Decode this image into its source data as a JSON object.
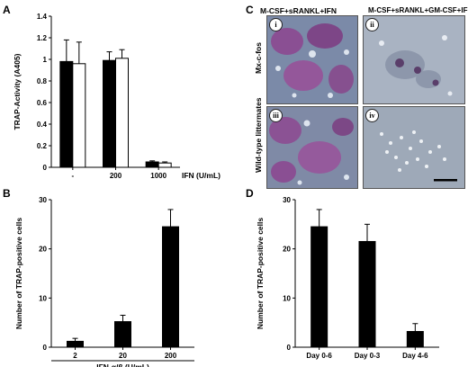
{
  "panels": {
    "A": {
      "label": "A",
      "chart_data": {
        "type": "bar",
        "ylabel": "TRAP-Activity (A405)",
        "xlabel": "IFN (U/mL)",
        "categories": [
          "-",
          "200",
          "1000"
        ],
        "ylim": [
          0,
          1.4
        ],
        "yticks": [
          "0",
          "0.2",
          "0.4",
          "0.6",
          "0.8",
          "1",
          "1.2",
          "1.4"
        ],
        "series": [
          {
            "values": [
              0.98,
              0.99,
              0.05
            ],
            "errors": [
              0.2,
              0.08,
              0.01
            ],
            "color": "#000000"
          },
          {
            "values": [
              0.96,
              1.01,
              0.04
            ],
            "errors": [
              0.2,
              0.08,
              0.01
            ],
            "color": "#ffffff"
          }
        ]
      }
    },
    "B": {
      "label": "B",
      "chart_data": {
        "type": "bar",
        "ylabel": "Number of TRAP-positive cells",
        "xlabel": "IFN-α/β (U/mL)",
        "categories": [
          "2",
          "20",
          "200"
        ],
        "ylim": [
          0,
          30
        ],
        "yticks": [
          "0",
          "10",
          "20",
          "30"
        ],
        "series": [
          {
            "values": [
              1.2,
              5.2,
              24.5
            ],
            "errors": [
              0.6,
              1.3,
              3.5
            ],
            "color": "#000000"
          }
        ]
      }
    },
    "C": {
      "label": "C",
      "col_titles": [
        "M-CSF+sRANKL+IFN",
        "M-CSF+sRANKL+GM-CSF+IFN"
      ],
      "row_labels": [
        "Mx-c-fos",
        "Wild-type littermates"
      ],
      "numerals": [
        "i",
        "ii",
        "iii",
        "iv"
      ]
    },
    "D": {
      "label": "D",
      "chart_data": {
        "type": "bar",
        "ylabel": "Number of TRAP-positive cells",
        "xlabel": "",
        "categories": [
          "Day 0-6",
          "Day 0-3",
          "Day 4-6"
        ],
        "ylim": [
          0,
          30
        ],
        "yticks": [
          "0",
          "10",
          "20",
          "30"
        ],
        "series": [
          {
            "values": [
              24.5,
              21.5,
              3.2
            ],
            "errors": [
              3.5,
              3.5,
              1.6
            ],
            "color": "#000000"
          }
        ]
      }
    }
  }
}
